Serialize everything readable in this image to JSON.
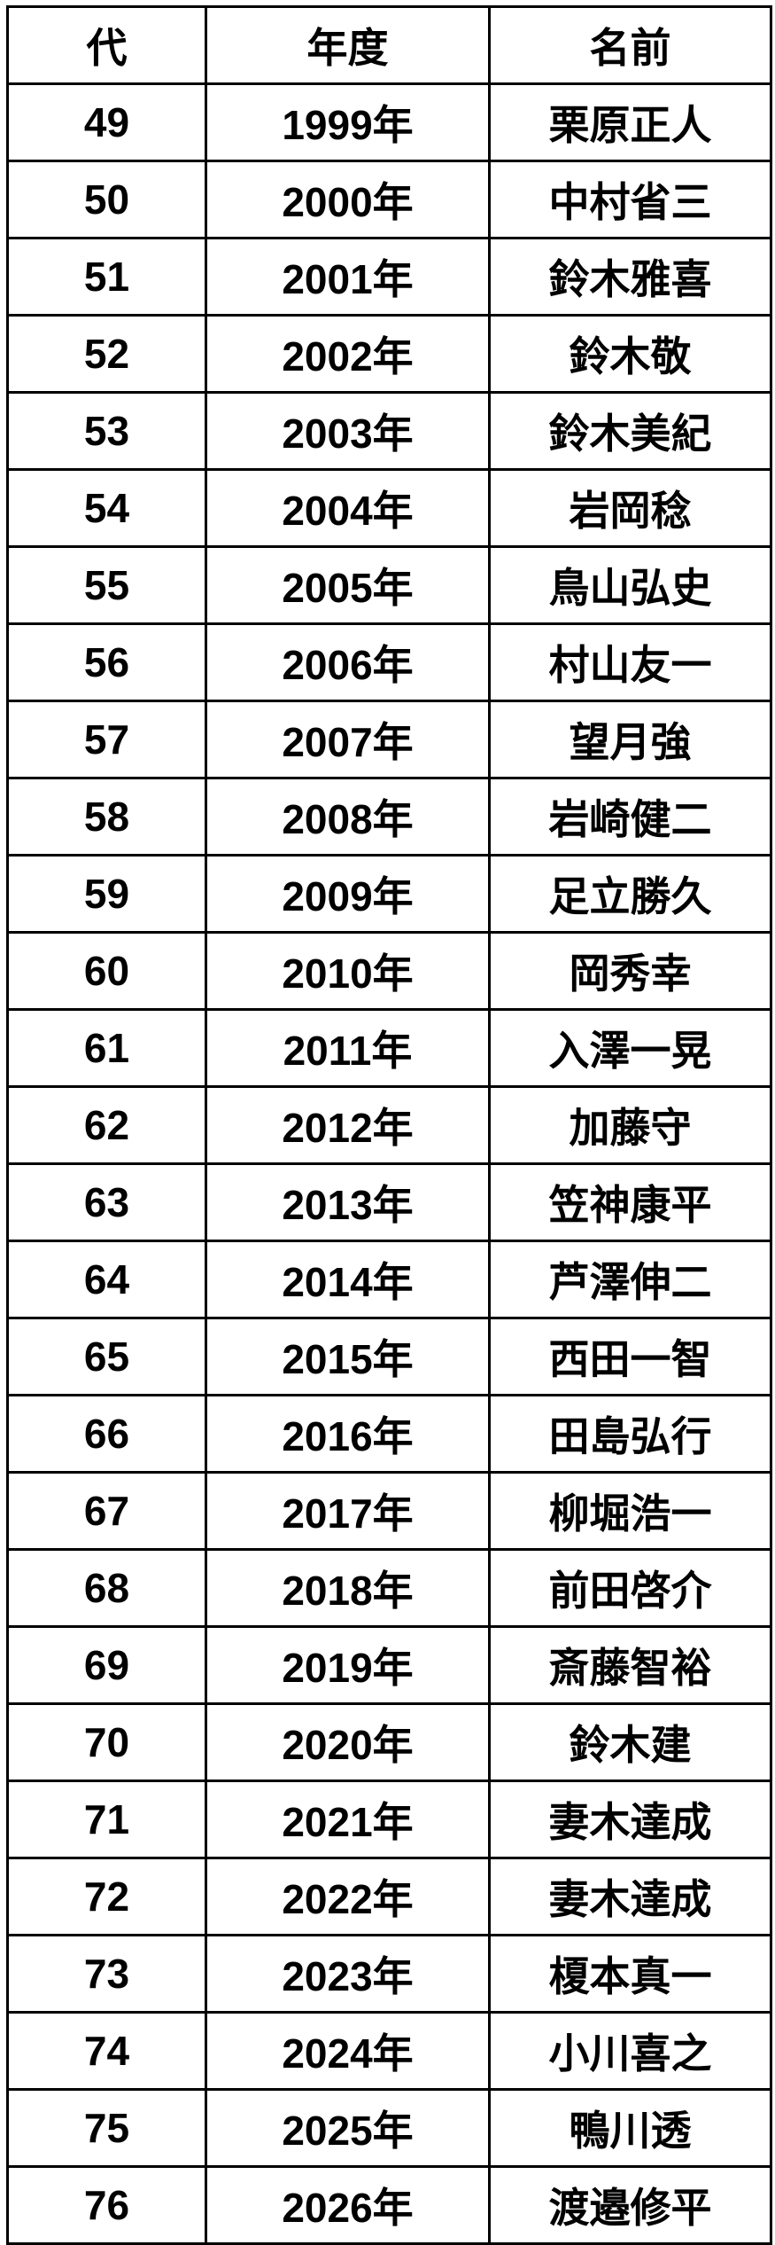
{
  "table": {
    "headers": [
      "代",
      "年度",
      "名前"
    ],
    "rows": [
      [
        "49",
        "1999年",
        "栗原正人"
      ],
      [
        "50",
        "2000年",
        "中村省三"
      ],
      [
        "51",
        "2001年",
        "鈴木雅喜"
      ],
      [
        "52",
        "2002年",
        "鈴木敬"
      ],
      [
        "53",
        "2003年",
        "鈴木美紀"
      ],
      [
        "54",
        "2004年",
        "岩岡稔"
      ],
      [
        "55",
        "2005年",
        "鳥山弘史"
      ],
      [
        "56",
        "2006年",
        "村山友一"
      ],
      [
        "57",
        "2007年",
        "望月強"
      ],
      [
        "58",
        "2008年",
        "岩崎健二"
      ],
      [
        "59",
        "2009年",
        "足立勝久"
      ],
      [
        "60",
        "2010年",
        "岡秀幸"
      ],
      [
        "61",
        "2011年",
        "入澤一晃"
      ],
      [
        "62",
        "2012年",
        "加藤守"
      ],
      [
        "63",
        "2013年",
        "笠神康平"
      ],
      [
        "64",
        "2014年",
        "芦澤伸二"
      ],
      [
        "65",
        "2015年",
        "西田一智"
      ],
      [
        "66",
        "2016年",
        "田島弘行"
      ],
      [
        "67",
        "2017年",
        "柳堀浩一"
      ],
      [
        "68",
        "2018年",
        "前田啓介"
      ],
      [
        "69",
        "2019年",
        "斎藤智裕"
      ],
      [
        "70",
        "2020年",
        "鈴木建"
      ],
      [
        "71",
        "2021年",
        "妻木達成"
      ],
      [
        "72",
        "2022年",
        "妻木達成"
      ],
      [
        "73",
        "2023年",
        "榎本真一"
      ],
      [
        "74",
        "2024年",
        "小川喜之"
      ],
      [
        "75",
        "2025年",
        "鴨川透"
      ],
      [
        "76",
        "2026年",
        "渡邉修平"
      ]
    ]
  }
}
